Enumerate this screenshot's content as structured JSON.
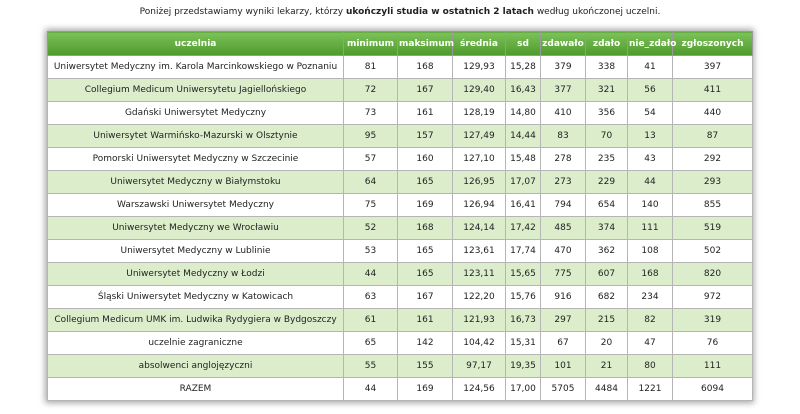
{
  "intro": {
    "before": "Poniżej przedstawiamy wyniki lekarzy, którzy ",
    "bold": "ukończyli studia w ostatnich 2 latach",
    "after": " według ukończonej uczelni."
  },
  "table": {
    "columns": [
      "uczelnia",
      "minimum",
      "maksimum",
      "średnia",
      "sd",
      "zdawało",
      "zdało",
      "nie_zdało",
      "zgłoszonych"
    ],
    "rows": [
      [
        "Uniwersytet Medyczny im. Karola Marcinkowskiego w Poznaniu",
        "81",
        "168",
        "129,93",
        "15,28",
        "379",
        "338",
        "41",
        "397"
      ],
      [
        "Collegium Medicum Uniwersytetu Jagiellońskiego",
        "72",
        "167",
        "129,40",
        "16,43",
        "377",
        "321",
        "56",
        "411"
      ],
      [
        "Gdański Uniwersytet Medyczny",
        "73",
        "161",
        "128,19",
        "14,80",
        "410",
        "356",
        "54",
        "440"
      ],
      [
        "Uniwersytet Warmińsko-Mazurski w Olsztynie",
        "95",
        "157",
        "127,49",
        "14,44",
        "83",
        "70",
        "13",
        "87"
      ],
      [
        "Pomorski Uniwersytet Medyczny w Szczecinie",
        "57",
        "160",
        "127,10",
        "15,48",
        "278",
        "235",
        "43",
        "292"
      ],
      [
        "Uniwersytet Medyczny w Białymstoku",
        "64",
        "165",
        "126,95",
        "17,07",
        "273",
        "229",
        "44",
        "293"
      ],
      [
        "Warszawski Uniwersytet Medyczny",
        "75",
        "169",
        "126,94",
        "16,41",
        "794",
        "654",
        "140",
        "855"
      ],
      [
        "Uniwersytet Medyczny we Wrocławiu",
        "52",
        "168",
        "124,14",
        "17,42",
        "485",
        "374",
        "111",
        "519"
      ],
      [
        "Uniwersytet Medyczny w Lublinie",
        "53",
        "165",
        "123,61",
        "17,74",
        "470",
        "362",
        "108",
        "502"
      ],
      [
        "Uniwersytet Medyczny w Łodzi",
        "44",
        "165",
        "123,11",
        "15,65",
        "775",
        "607",
        "168",
        "820"
      ],
      [
        "Śląski Uniwersytet Medyczny w Katowicach",
        "63",
        "167",
        "122,20",
        "15,76",
        "916",
        "682",
        "234",
        "972"
      ],
      [
        "Collegium Medicum UMK im. Ludwika Rydygiera w Bydgoszczy",
        "61",
        "161",
        "121,93",
        "16,73",
        "297",
        "215",
        "82",
        "319"
      ],
      [
        "uczelnie zagraniczne",
        "65",
        "142",
        "104,42",
        "15,31",
        "67",
        "20",
        "47",
        "76"
      ],
      [
        "absolwenci anglojęzyczni",
        "55",
        "155",
        "97,17",
        "19,35",
        "101",
        "21",
        "80",
        "111"
      ],
      [
        "RAZEM",
        "44",
        "169",
        "124,56",
        "17,00",
        "5705",
        "4484",
        "1221",
        "6094"
      ]
    ]
  }
}
